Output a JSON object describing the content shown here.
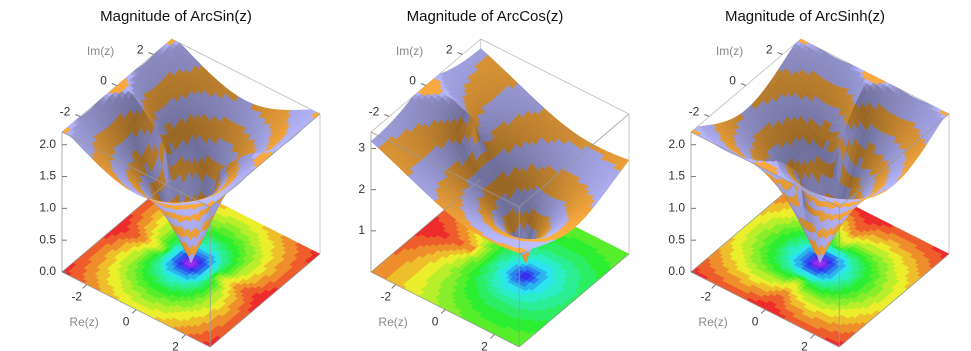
{
  "chart_data": [
    {
      "type": "surface3d",
      "title": "Magnitude of ArcSin(z)",
      "xlabel": "Re(z)",
      "ylabel": "Im(z)",
      "xlim": [
        -3,
        3
      ],
      "ylim": [
        -3,
        3
      ],
      "zlim": [
        0,
        2.2
      ],
      "xticks": [
        -2,
        0,
        2
      ],
      "yticks": [
        -2,
        0,
        2
      ],
      "zticks": [
        {
          "value": 0,
          "label": "0.0"
        },
        0.5,
        {
          "value": 1,
          "label": "1.0"
        },
        1.5,
        {
          "value": 2,
          "label": "2.0"
        }
      ]
    },
    {
      "type": "surface3d",
      "title": "Magnitude of ArcCos(z)",
      "xlabel": "Re(z)",
      "ylabel": "Im(z)",
      "xlim": [
        -3,
        3
      ],
      "ylim": [
        -3,
        3
      ],
      "zlim": [
        0,
        3.4
      ],
      "xticks": [
        -2,
        0,
        2
      ],
      "yticks": [
        -2,
        0,
        2
      ],
      "zticks": [
        1,
        2,
        3
      ]
    },
    {
      "type": "surface3d",
      "title": "Magnitude of ArcSinh(z)",
      "xlabel": "Re(z)",
      "ylabel": "Im(z)",
      "xlim": [
        -3,
        3
      ],
      "ylim": [
        -3,
        3
      ],
      "zlim": [
        0,
        2.2
      ],
      "xticks": [
        -2,
        0,
        2
      ],
      "yticks": [
        -2,
        0,
        2
      ],
      "zticks": [
        {
          "value": 0,
          "label": "0.0"
        },
        0.5,
        {
          "value": 1,
          "label": "1.0"
        },
        1.5,
        {
          "value": 2,
          "label": "2.0"
        }
      ]
    }
  ]
}
